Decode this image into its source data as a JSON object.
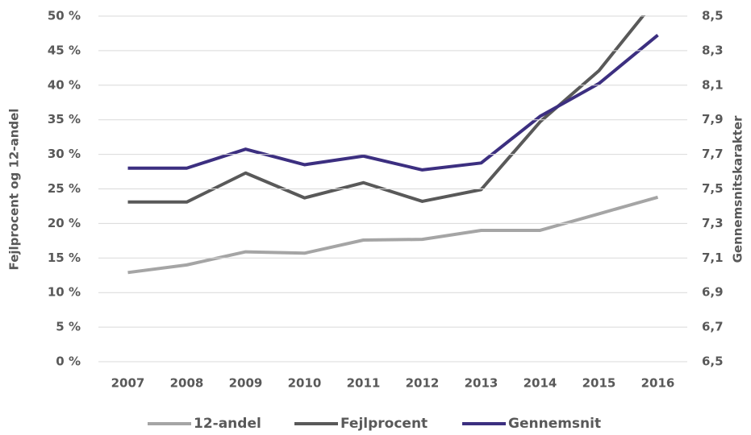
{
  "chart_data": {
    "type": "line",
    "categories": [
      "2007",
      "2008",
      "2009",
      "2010",
      "2011",
      "2012",
      "2013",
      "2014",
      "2015",
      "2016"
    ],
    "ylabel": "Fejlprocent og 12-andel",
    "y2label": "Gennemsnitskarakter",
    "ylim": [
      0,
      50
    ],
    "yticks": [
      {
        "value": 0,
        "label": "0 %"
      },
      {
        "value": 5,
        "label": "5 %"
      },
      {
        "value": 10,
        "label": "10 %"
      },
      {
        "value": 15,
        "label": "15 %"
      },
      {
        "value": 20,
        "label": "20 %"
      },
      {
        "value": 25,
        "label": "25 %"
      },
      {
        "value": 30,
        "label": "30 %"
      },
      {
        "value": 35,
        "label": "35 %"
      },
      {
        "value": 40,
        "label": "40 %"
      },
      {
        "value": 45,
        "label": "45 %"
      },
      {
        "value": 50,
        "label": "50 %"
      }
    ],
    "y2lim": [
      6.5,
      8.5
    ],
    "y2ticks": [
      {
        "value": 6.5,
        "label": "6,5"
      },
      {
        "value": 6.7,
        "label": "6,7"
      },
      {
        "value": 6.9,
        "label": "6,9"
      },
      {
        "value": 7.1,
        "label": "7,1"
      },
      {
        "value": 7.3,
        "label": "7,3"
      },
      {
        "value": 7.5,
        "label": "7,5"
      },
      {
        "value": 7.7,
        "label": "7,7"
      },
      {
        "value": 7.9,
        "label": "7,9"
      },
      {
        "value": 8.1,
        "label": "8,1"
      },
      {
        "value": 8.3,
        "label": "8,3"
      },
      {
        "value": 8.5,
        "label": "8,5"
      }
    ],
    "grid": true,
    "legend": "bottom",
    "series": [
      {
        "name": "12-andel",
        "color": "#a5a5a5",
        "values": [
          12.9,
          14.0,
          15.9,
          15.7,
          17.6,
          17.7,
          19.0,
          19.0,
          21.4,
          23.8
        ]
      },
      {
        "name": "Fejlprocent",
        "color": "#595959",
        "values": [
          23.1,
          23.1,
          27.3,
          23.7,
          25.9,
          23.2,
          24.9,
          34.7,
          42.1,
          52.7
        ]
      },
      {
        "name": "Gennemsnit",
        "color": "#3c2f80",
        "axis": "y2",
        "values": [
          7.62,
          7.62,
          7.73,
          7.64,
          7.69,
          7.61,
          7.65,
          7.92,
          8.11,
          8.39
        ]
      }
    ]
  }
}
